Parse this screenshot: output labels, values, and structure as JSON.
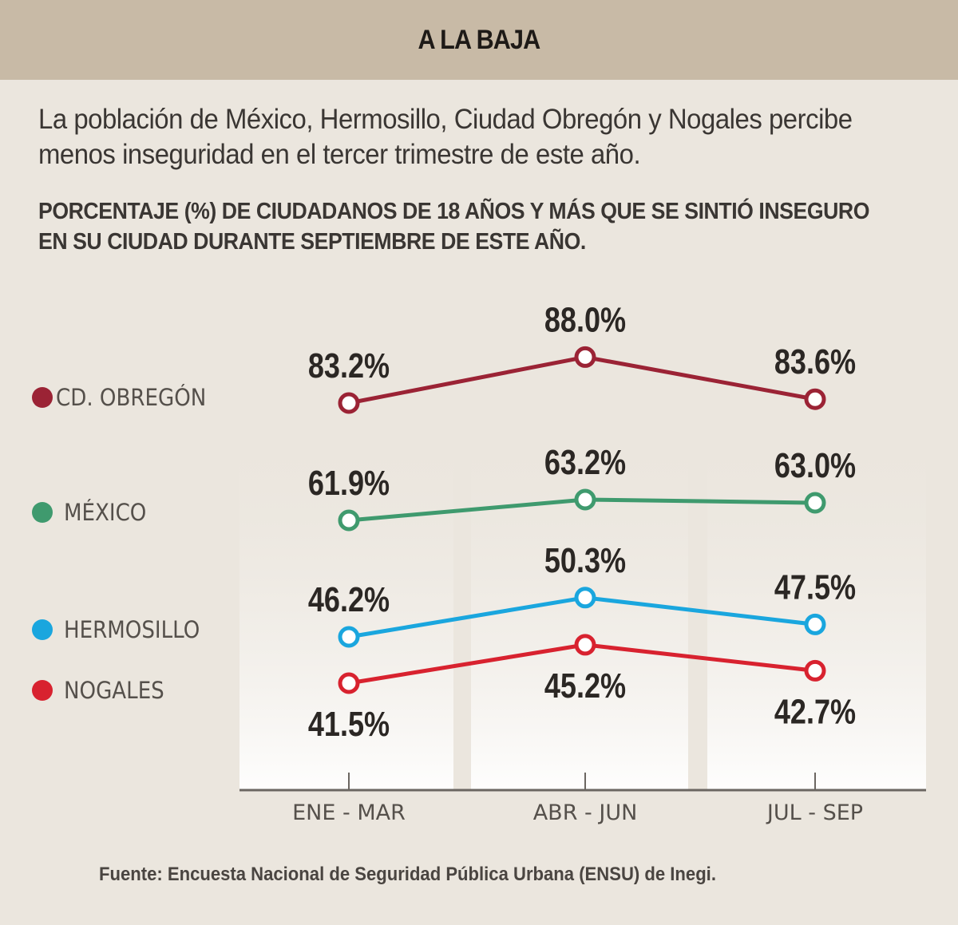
{
  "header": {
    "title": "A LA BAJA"
  },
  "intro": "La población de México, Hermosillo, Ciudad Obregón y Nogales percibe menos inseguridad  en el tercer trimestre de este año.",
  "source": "Fuente: Encuesta Nacional de Seguridad Pública Urbana (ENSU) de Inegi.",
  "chart_data": {
    "type": "line",
    "title": "A LA BAJA",
    "subtitle": "PORCENTAJE (%) DE CIUDADANOS DE 18 AÑOS Y MÁS QUE SE SINTIÓ INSEGURO EN SU CIUDAD DURANTE SEPTIEMBRE DE ESTE AÑO.",
    "xlabel": "",
    "ylabel": "",
    "categories": [
      "ENE - MAR",
      "ABR - JUN",
      "JUL - SEP"
    ],
    "grid": false,
    "legend_position": "left",
    "value_suffix": "%",
    "series": [
      {
        "name": "CD. OBREGÓN",
        "color": "#9b2335",
        "values": [
          83.2,
          88.0,
          83.6
        ],
        "labels": [
          "83.2%",
          "88.0%",
          "83.6%"
        ],
        "label_side": "above"
      },
      {
        "name": "MÉXICO",
        "color": "#3f9a6e",
        "values": [
          61.9,
          63.2,
          63.0
        ],
        "labels": [
          "61.9%",
          "63.2%",
          "63.0%"
        ],
        "label_side": "above"
      },
      {
        "name": "HERMOSILLO",
        "color": "#1aa6de",
        "values": [
          46.2,
          50.3,
          47.5
        ],
        "labels": [
          "46.2%",
          "50.3%",
          "47.5%"
        ],
        "label_side": "above"
      },
      {
        "name": "NOGALES",
        "color": "#d8222f",
        "values": [
          41.5,
          45.2,
          42.7
        ],
        "labels": [
          "41.5%",
          "45.2%",
          "42.7%"
        ],
        "label_side": "below"
      }
    ]
  }
}
